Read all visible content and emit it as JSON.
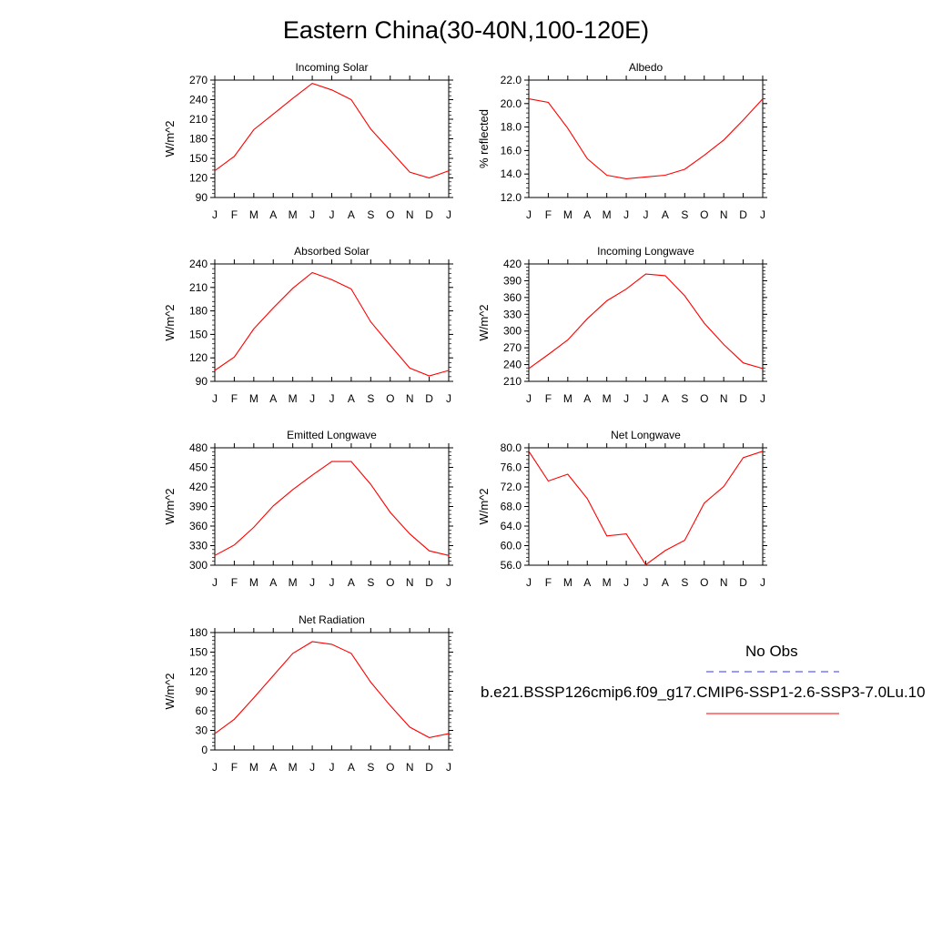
{
  "title": "Eastern China(30-40N,100-120E)",
  "months": [
    "J",
    "F",
    "M",
    "A",
    "M",
    "J",
    "J",
    "A",
    "S",
    "O",
    "N",
    "D",
    "J"
  ],
  "colors": {
    "model_line": "#ff0000",
    "obs_line": "#3333ff",
    "axes": "#000000"
  },
  "legend": {
    "obs_label": "No Obs",
    "model_label": "b.e21.BSSP126cmip6.f09_g17.CMIP6-SSP1-2.6-SSP3-7.0Lu.10",
    "obs_style": "dashed",
    "model_style": "solid"
  },
  "chart_data": [
    {
      "type": "line",
      "title": "Incoming Solar",
      "ylabel": "W/m^2",
      "ylim": [
        90,
        270
      ],
      "yticks": [
        "90",
        "120",
        "150",
        "180",
        "210",
        "240",
        "270"
      ],
      "series": [
        {
          "values": [
            131,
            153,
            194,
            218,
            242,
            265,
            255,
            240,
            195,
            162,
            129,
            120,
            131
          ]
        }
      ]
    },
    {
      "type": "line",
      "title": "Albedo",
      "ylabel": "% reflected",
      "ylim": [
        12.0,
        22.0
      ],
      "yticks": [
        "12.0",
        "14.0",
        "16.0",
        "18.0",
        "20.0",
        "22.0"
      ],
      "series": [
        {
          "values": [
            20.4,
            20.1,
            17.9,
            15.3,
            13.9,
            13.6,
            13.75,
            13.9,
            14.4,
            15.6,
            16.9,
            18.6,
            20.4
          ]
        }
      ]
    },
    {
      "type": "line",
      "title": "Absorbed Solar",
      "ylabel": "W/m^2",
      "ylim": [
        90,
        240
      ],
      "yticks": [
        "90",
        "120",
        "150",
        "180",
        "210",
        "240"
      ],
      "series": [
        {
          "values": [
            104,
            121,
            157,
            184,
            209,
            229,
            220,
            208,
            166,
            136,
            107,
            97,
            104
          ]
        }
      ]
    },
    {
      "type": "line",
      "title": "Incoming Longwave",
      "ylabel": "W/m^2",
      "ylim": [
        210,
        420
      ],
      "yticks": [
        "210",
        "240",
        "270",
        "300",
        "330",
        "360",
        "390",
        "420"
      ],
      "series": [
        {
          "values": [
            233,
            258,
            284,
            322,
            354,
            375,
            402,
            399,
            363,
            314,
            276,
            243,
            233
          ]
        }
      ]
    },
    {
      "type": "line",
      "title": "Emitted Longwave",
      "ylabel": "W/m^2",
      "ylim": [
        300,
        480
      ],
      "yticks": [
        "300",
        "330",
        "360",
        "390",
        "420",
        "450",
        "480"
      ],
      "series": [
        {
          "values": [
            315,
            331,
            358,
            391,
            416,
            438,
            459,
            459,
            424,
            381,
            348,
            322,
            315
          ]
        }
      ]
    },
    {
      "type": "line",
      "title": "Net Longwave",
      "ylabel": "W/m^2",
      "ylim": [
        56.0,
        80.0
      ],
      "yticks": [
        "56.0",
        "60.0",
        "64.0",
        "68.0",
        "72.0",
        "76.0",
        "80.0"
      ],
      "series": [
        {
          "values": [
            79.3,
            73.2,
            74.6,
            69.6,
            62.0,
            62.4,
            56.1,
            59.0,
            61.1,
            68.7,
            72.1,
            78.0,
            79.3
          ]
        }
      ]
    },
    {
      "type": "line",
      "title": "Net Radiation",
      "ylabel": "W/m^2",
      "ylim": [
        0,
        180
      ],
      "yticks": [
        "0",
        "30",
        "60",
        "90",
        "120",
        "150",
        "180"
      ],
      "series": [
        {
          "values": [
            25,
            47,
            80,
            114,
            148,
            166,
            162,
            148,
            104,
            68,
            35,
            19,
            25
          ]
        }
      ]
    }
  ]
}
